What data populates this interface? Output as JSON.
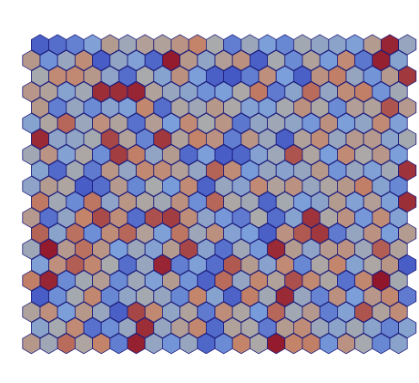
{
  "chart_data": {
    "type": "heatmap",
    "title": "",
    "xlabel": "",
    "ylabel": "",
    "grid": false,
    "legend": "none",
    "colormap": "coolwarm",
    "cell_shape": "hexagon",
    "rows": 20,
    "cols": 22,
    "value_range": [
      0,
      1
    ],
    "values": [
      [
        0.06,
        0.1,
        0.16,
        0.28,
        0.6,
        0.43,
        0.57,
        0.56,
        0.65,
        0.75,
        0.49,
        0.15,
        0.42,
        0.26,
        0.18,
        0.46,
        0.37,
        0.34,
        0.27,
        0.6,
        0.95,
        0.4
      ],
      [
        0.62,
        0.21,
        0.4,
        0.7,
        0.05,
        0.37,
        0.28,
        0.08,
        0.97,
        0.62,
        0.36,
        0.58,
        0.67,
        0.06,
        0.48,
        0.19,
        0.56,
        0.24,
        0.71,
        0.13,
        0.96,
        0.31
      ],
      [
        0.48,
        0.71,
        0.72,
        0.62,
        0.35,
        0.1,
        0.49,
        0.31,
        0.67,
        0.26,
        0.06,
        0.04,
        0.15,
        0.68,
        0.25,
        0.06,
        0.66,
        0.76,
        0.39,
        0.22,
        0.61,
        0.91
      ],
      [
        0.63,
        0.56,
        0.31,
        0.45,
        0.93,
        0.93,
        0.95,
        0.56,
        0.4,
        0.34,
        0.21,
        0.26,
        0.51,
        0.77,
        0.14,
        0.33,
        0.8,
        0.38,
        0.7,
        0.76,
        0.22,
        0.45
      ],
      [
        0.62,
        0.15,
        0.39,
        0.19,
        0.32,
        0.27,
        0.73,
        0.1,
        0.53,
        0.44,
        0.62,
        0.51,
        0.29,
        0.27,
        0.48,
        0.67,
        0.52,
        0.19,
        0.58,
        0.56,
        0.85,
        0.61
      ],
      [
        0.31,
        0.54,
        0.81,
        0.41,
        0.68,
        0.55,
        0.11,
        0.59,
        0.25,
        0.71,
        0.49,
        0.64,
        0.13,
        0.37,
        0.44,
        0.36,
        0.23,
        0.67,
        0.26,
        0.36,
        0.71,
        0.28
      ],
      [
        0.94,
        0.35,
        0.36,
        0.47,
        0.88,
        0.56,
        0.17,
        0.91,
        0.56,
        0.75,
        0.66,
        0.15,
        0.64,
        0.42,
        0.06,
        0.56,
        0.7,
        0.4,
        0.61,
        0.61,
        0.33,
        0.47
      ],
      [
        0.45,
        0.65,
        0.29,
        0.52,
        0.2,
        0.9,
        0.76,
        0.37,
        0.6,
        0.09,
        0.26,
        0.05,
        0.08,
        0.3,
        0.43,
        0.85,
        0.54,
        0.25,
        0.71,
        0.51,
        0.63,
        0.26
      ],
      [
        0.31,
        0.09,
        0.46,
        0.14,
        0.64,
        0.38,
        0.72,
        0.7,
        0.57,
        0.38,
        0.82,
        0.7,
        0.24,
        0.39,
        0.32,
        0.39,
        0.62,
        0.22,
        0.4,
        0.28,
        0.45,
        0.92
      ],
      [
        0.35,
        0.6,
        0.54,
        0.05,
        0.1,
        0.61,
        0.18,
        0.49,
        0.24,
        0.71,
        0.07,
        0.4,
        0.32,
        0.71,
        0.56,
        0.66,
        0.4,
        0.53,
        0.62,
        0.76,
        0.31,
        0.18
      ],
      [
        0.77,
        0.45,
        0.19,
        0.78,
        0.35,
        0.64,
        0.53,
        0.45,
        0.67,
        0.2,
        0.81,
        0.52,
        0.45,
        0.08,
        0.47,
        0.26,
        0.34,
        0.6,
        0.29,
        0.58,
        0.27,
        0.93
      ],
      [
        0.61,
        0.11,
        0.37,
        0.75,
        0.87,
        0.69,
        0.1,
        0.86,
        0.9,
        0.69,
        0.35,
        0.23,
        0.14,
        0.5,
        0.1,
        0.31,
        0.92,
        0.52,
        0.66,
        0.23,
        0.7,
        0.29
      ],
      [
        0.82,
        0.33,
        0.79,
        0.2,
        0.7,
        0.81,
        0.57,
        0.27,
        0.78,
        0.43,
        0.67,
        0.3,
        0.25,
        0.06,
        0.66,
        0.84,
        0.91,
        0.14,
        0.39,
        0.66,
        0.26,
        0.6
      ],
      [
        0.43,
        0.97,
        0.61,
        0.79,
        0.64,
        0.25,
        0.42,
        0.3,
        0.6,
        0.88,
        0.32,
        0.11,
        0.44,
        0.23,
        0.94,
        0.6,
        0.35,
        0.61,
        0.66,
        0.43,
        0.83,
        0.56
      ],
      [
        0.28,
        0.68,
        0.83,
        0.73,
        0.49,
        0.1,
        0.4,
        0.95,
        0.15,
        0.27,
        0.1,
        0.84,
        0.6,
        0.32,
        0.71,
        0.18,
        0.52,
        0.74,
        0.31,
        0.52,
        0.64,
        0.05
      ],
      [
        0.76,
        0.95,
        0.19,
        0.46,
        0.59,
        0.19,
        0.43,
        0.28,
        0.6,
        0.22,
        0.07,
        0.8,
        0.38,
        0.73,
        0.56,
        0.86,
        0.72,
        0.53,
        0.11,
        0.73,
        0.98,
        0.47
      ],
      [
        0.05,
        0.2,
        0.47,
        0.73,
        0.18,
        0.36,
        0.47,
        0.39,
        0.18,
        0.74,
        0.31,
        0.07,
        0.76,
        0.45,
        0.94,
        0.4,
        0.17,
        0.67,
        0.26,
        0.63,
        0.73,
        0.14
      ],
      [
        0.55,
        0.68,
        0.26,
        0.62,
        0.4,
        0.06,
        0.88,
        0.72,
        0.36,
        0.55,
        0.14,
        0.69,
        0.53,
        0.24,
        0.81,
        0.45,
        0.61,
        0.15,
        0.29,
        0.85,
        0.55,
        0.7
      ],
      [
        0.33,
        0.48,
        0.71,
        0.11,
        0.2,
        0.4,
        0.93,
        0.39,
        0.58,
        0.73,
        0.09,
        0.56,
        0.51,
        0.14,
        0.6,
        0.7,
        0.42,
        0.34,
        0.46,
        0.33,
        0.17,
        0.31
      ],
      [
        0.62,
        0.44,
        0.8,
        0.54,
        0.75,
        0.15,
        0.96,
        0.38,
        0.22,
        0.4,
        0.08,
        0.19,
        0.75,
        0.51,
        0.97,
        0.75,
        0.76,
        0.22,
        0.66,
        0.48,
        0.18,
        0.33
      ]
    ]
  }
}
